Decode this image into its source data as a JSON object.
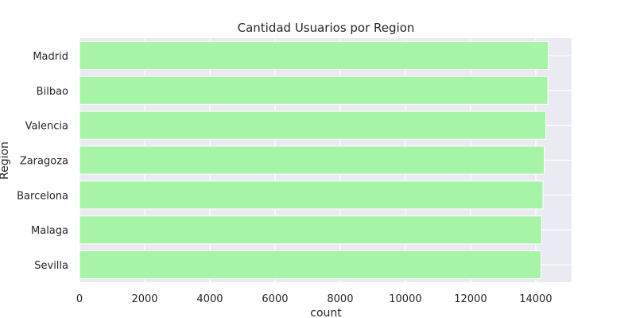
{
  "chart_data": {
    "type": "bar",
    "orientation": "horizontal",
    "title": "Cantidad Usuarios por Region",
    "xlabel": "count",
    "ylabel": "Region",
    "categories": [
      "Madrid",
      "Bilbao",
      "Valencia",
      "Zaragoza",
      "Barcelona",
      "Malaga",
      "Sevilla"
    ],
    "values": [
      14390,
      14370,
      14310,
      14260,
      14220,
      14180,
      14160
    ],
    "xlim": [
      0,
      15100
    ],
    "xticks": [
      0,
      2000,
      4000,
      6000,
      8000,
      10000,
      12000,
      14000
    ],
    "xtick_labels": [
      "0",
      "2000",
      "4000",
      "6000",
      "8000",
      "10000",
      "12000",
      "14000"
    ],
    "grid": true,
    "colors": {
      "bar": "#a6f4a6",
      "plot_background": "#eaeaf2",
      "grid": "#ffffff"
    }
  }
}
